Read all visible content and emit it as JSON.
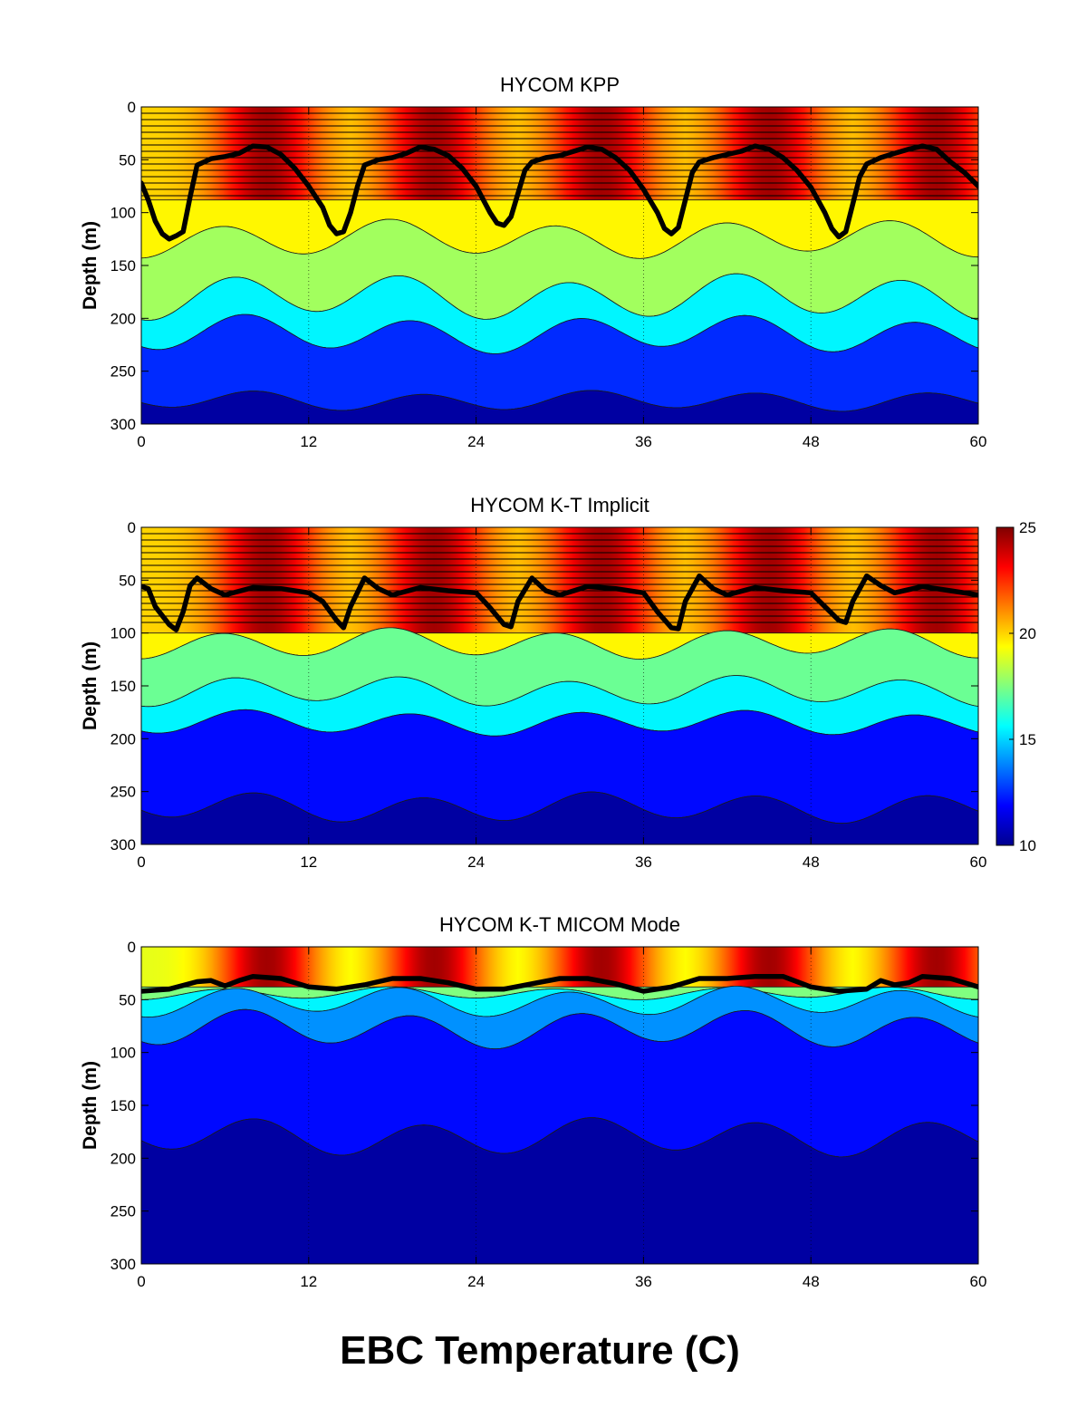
{
  "figure_title": "EBC Temperature (C)",
  "chart_data": [
    {
      "type": "heatmap",
      "title": "HYCOM KPP",
      "xlabel": "",
      "ylabel": "Depth (m)",
      "xlim": [
        0,
        60
      ],
      "ylim": [
        300,
        0
      ],
      "xticks": [
        "0",
        "12",
        "24",
        "36",
        "48",
        "60"
      ],
      "yticks": [
        "0",
        "50",
        "100",
        "150",
        "200",
        "250",
        "300"
      ],
      "grid": "vertical dotted lines at x ticks",
      "surface_temperature_range": [
        20,
        24.5
      ],
      "surface_warm_peaks_x": [
        9,
        21,
        33,
        45,
        57
      ],
      "layer_interface_depths": [
        6,
        12,
        18,
        24,
        30,
        36,
        42,
        48,
        54,
        60,
        66,
        72,
        78,
        84
      ],
      "isopycnal_bands": [
        {
          "temperature": 19.5,
          "top_mean_depth": 88,
          "bottom_mean_depth": 125,
          "amplitude": 12
        },
        {
          "temperature": 18,
          "top_mean_depth": 125,
          "bottom_mean_depth": 180,
          "amplitude": 15
        },
        {
          "temperature": 15.5,
          "top_mean_depth": 180,
          "bottom_mean_depth": 215,
          "amplitude": 18
        },
        {
          "temperature": 12.5,
          "top_mean_depth": 215,
          "bottom_mean_depth": 278,
          "amplitude": 15
        },
        {
          "temperature": 10.5,
          "top_mean_depth": 278,
          "bottom_mean_depth": 300,
          "amplitude": 8
        }
      ],
      "mixed_layer_depth": {
        "x": [
          0,
          0.5,
          1,
          1.5,
          2,
          2.5,
          3,
          3.5,
          4,
          5,
          6,
          7,
          8,
          9,
          10,
          11,
          12,
          13,
          13.5,
          14,
          14.5,
          15,
          15.5,
          16,
          17,
          18,
          19,
          20,
          21,
          22,
          23,
          24,
          25,
          25.5,
          26,
          26.5,
          27,
          27.5,
          28,
          29,
          30,
          31,
          32,
          33,
          34,
          35,
          36,
          37,
          37.5,
          38,
          38.5,
          39,
          39.5,
          40,
          41,
          42,
          43,
          44,
          45,
          46,
          47,
          48,
          49,
          49.5,
          50,
          50.5,
          51,
          51.5,
          52,
          53,
          54,
          55,
          56,
          57,
          58,
          59,
          60
        ],
        "y": [
          72,
          88,
          108,
          120,
          125,
          122,
          118,
          85,
          55,
          49,
          47,
          44,
          37,
          38,
          45,
          58,
          75,
          95,
          112,
          120,
          118,
          100,
          75,
          55,
          50,
          48,
          44,
          38,
          40,
          46,
          58,
          75,
          100,
          110,
          112,
          104,
          82,
          60,
          52,
          48,
          46,
          42,
          38,
          40,
          48,
          60,
          78,
          100,
          115,
          120,
          114,
          88,
          62,
          52,
          48,
          45,
          42,
          37,
          40,
          48,
          60,
          76,
          100,
          115,
          123,
          118,
          92,
          66,
          54,
          48,
          44,
          40,
          37,
          40,
          52,
          62,
          75
        ]
      }
    },
    {
      "type": "heatmap",
      "title": "HYCOM K-T Implicit",
      "xlabel": "",
      "ylabel": "Depth (m)",
      "xlim": [
        0,
        60
      ],
      "ylim": [
        300,
        0
      ],
      "xticks": [
        "0",
        "12",
        "24",
        "36",
        "48",
        "60"
      ],
      "yticks": [
        "0",
        "50",
        "100",
        "150",
        "200",
        "250",
        "300"
      ],
      "grid": "vertical dotted lines at x ticks",
      "surface_temperature_range": [
        20,
        24.5
      ],
      "surface_warm_peaks_x": [
        9,
        21,
        33,
        45,
        57
      ],
      "layer_interface_depths": [
        6,
        12,
        18,
        24,
        30,
        36,
        42,
        48,
        54,
        60,
        66,
        72,
        78,
        84,
        90
      ],
      "isopycnal_bands": [
        {
          "temperature": 19.5,
          "top_mean_depth": 100,
          "bottom_mean_depth": 110,
          "amplitude": 8
        },
        {
          "temperature": 17.2,
          "top_mean_depth": 110,
          "bottom_mean_depth": 155,
          "amplitude": 12
        },
        {
          "temperature": 15.5,
          "top_mean_depth": 155,
          "bottom_mean_depth": 185,
          "amplitude": 12
        },
        {
          "temperature": 12,
          "top_mean_depth": 185,
          "bottom_mean_depth": 265,
          "amplitude": 10
        },
        {
          "temperature": 10.5,
          "top_mean_depth": 265,
          "bottom_mean_depth": 300,
          "amplitude": 12
        }
      ],
      "colorbar": {
        "min": 10,
        "max": 25,
        "ticks": [
          "10",
          "15",
          "20",
          "25"
        ]
      },
      "mixed_layer_depth": {
        "x": [
          0,
          0.5,
          1,
          2,
          2.5,
          3,
          3.5,
          4,
          5,
          6,
          8,
          10,
          12,
          13,
          14,
          14.5,
          15,
          16,
          17,
          18,
          20,
          22,
          24,
          25,
          26,
          26.5,
          27,
          28,
          29,
          30,
          32,
          34,
          36,
          37,
          38,
          38.5,
          39,
          40,
          41,
          42,
          44,
          46,
          48,
          49,
          50,
          50.5,
          51,
          52,
          53,
          54,
          56,
          58,
          60
        ],
        "y": [
          56,
          58,
          75,
          92,
          97,
          80,
          55,
          48,
          58,
          64,
          57,
          58,
          62,
          70,
          88,
          95,
          75,
          48,
          58,
          64,
          57,
          60,
          62,
          76,
          92,
          94,
          70,
          48,
          60,
          64,
          56,
          58,
          62,
          80,
          95,
          96,
          70,
          46,
          58,
          64,
          57,
          60,
          62,
          75,
          88,
          90,
          70,
          46,
          55,
          62,
          56,
          60,
          64
        ]
      }
    },
    {
      "type": "heatmap",
      "title": "HYCOM K-T MICOM Mode",
      "xlabel": "",
      "ylabel": "Depth (m)",
      "xlim": [
        0,
        60
      ],
      "ylim": [
        300,
        0
      ],
      "xticks": [
        "0",
        "12",
        "24",
        "36",
        "48",
        "60"
      ],
      "yticks": [
        "0",
        "50",
        "100",
        "150",
        "200",
        "250",
        "300"
      ],
      "grid": "vertical dotted lines at x ticks",
      "surface_temperature_range": [
        19,
        24.5
      ],
      "surface_warm_peaks_x": [
        9,
        21,
        33,
        45,
        57
      ],
      "isopycnal_bands": [
        {
          "temperature": 17.5,
          "top_mean_depth": 38,
          "bottom_mean_depth": 44,
          "amplitude": 4
        },
        {
          "temperature": 15.5,
          "top_mean_depth": 44,
          "bottom_mean_depth": 52,
          "amplitude": 5
        },
        {
          "temperature": 14,
          "top_mean_depth": 52,
          "bottom_mean_depth": 78,
          "amplitude": 12
        },
        {
          "temperature": 12,
          "top_mean_depth": 78,
          "bottom_mean_depth": 180,
          "amplitude": 15
        },
        {
          "temperature": 10.5,
          "top_mean_depth": 180,
          "bottom_mean_depth": 300,
          "amplitude": 15
        }
      ],
      "mixed_layer_depth": {
        "x": [
          0,
          2,
          4,
          5,
          6,
          7,
          8,
          10,
          12,
          14,
          16,
          18,
          20,
          22,
          24,
          26,
          28,
          30,
          32,
          34,
          36,
          38,
          40,
          42,
          44,
          46,
          48,
          50,
          52,
          53,
          54,
          55,
          56,
          58,
          60
        ],
        "y": [
          42,
          40,
          33,
          32,
          37,
          32,
          28,
          30,
          38,
          40,
          36,
          30,
          30,
          34,
          40,
          40,
          35,
          30,
          30,
          35,
          42,
          38,
          30,
          30,
          28,
          28,
          38,
          42,
          40,
          32,
          36,
          34,
          28,
          30,
          38
        ]
      }
    }
  ]
}
